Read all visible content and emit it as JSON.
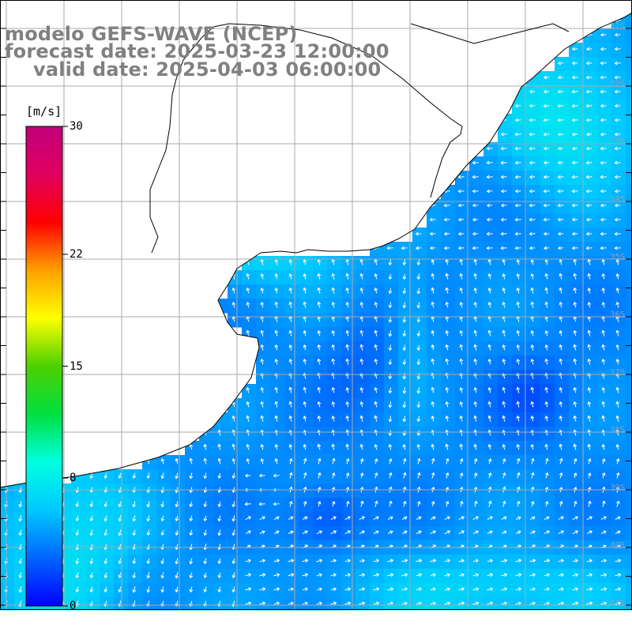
{
  "title": {
    "line1": "modelo GEFS-WAVE (NCEP)",
    "line2": "forecast date: 2025-03-23 12:00:00",
    "line3": "valid date: 2025-04-03 06:00:00"
  },
  "colorbar": {
    "unit": "[m/s]",
    "min": 0,
    "max": 30,
    "ticks": [
      {
        "value": 30,
        "label": "30"
      },
      {
        "value": 22,
        "label": "22"
      },
      {
        "value": 15,
        "label": "15"
      },
      {
        "value": 8,
        "label": "8"
      },
      {
        "value": 0,
        "label": "0"
      }
    ],
    "palette": [
      "#0000ff",
      "#0066ff",
      "#00c8ff",
      "#00ffe0",
      "#00e040",
      "#4cd000",
      "#ffff00",
      "#ffa000",
      "#ff0000",
      "#e00060",
      "#c0007a"
    ]
  },
  "map": {
    "land_color": "#ffffff",
    "grid_color": "#aaaaaa",
    "coastline_color": "#000000",
    "arrow_color": "#ffffff",
    "latitude_labels": [
      "31S",
      "32S",
      "33S",
      "34S",
      "35S",
      "36S",
      "37S",
      "38S",
      "39S",
      "40S",
      "41S"
    ]
  }
}
